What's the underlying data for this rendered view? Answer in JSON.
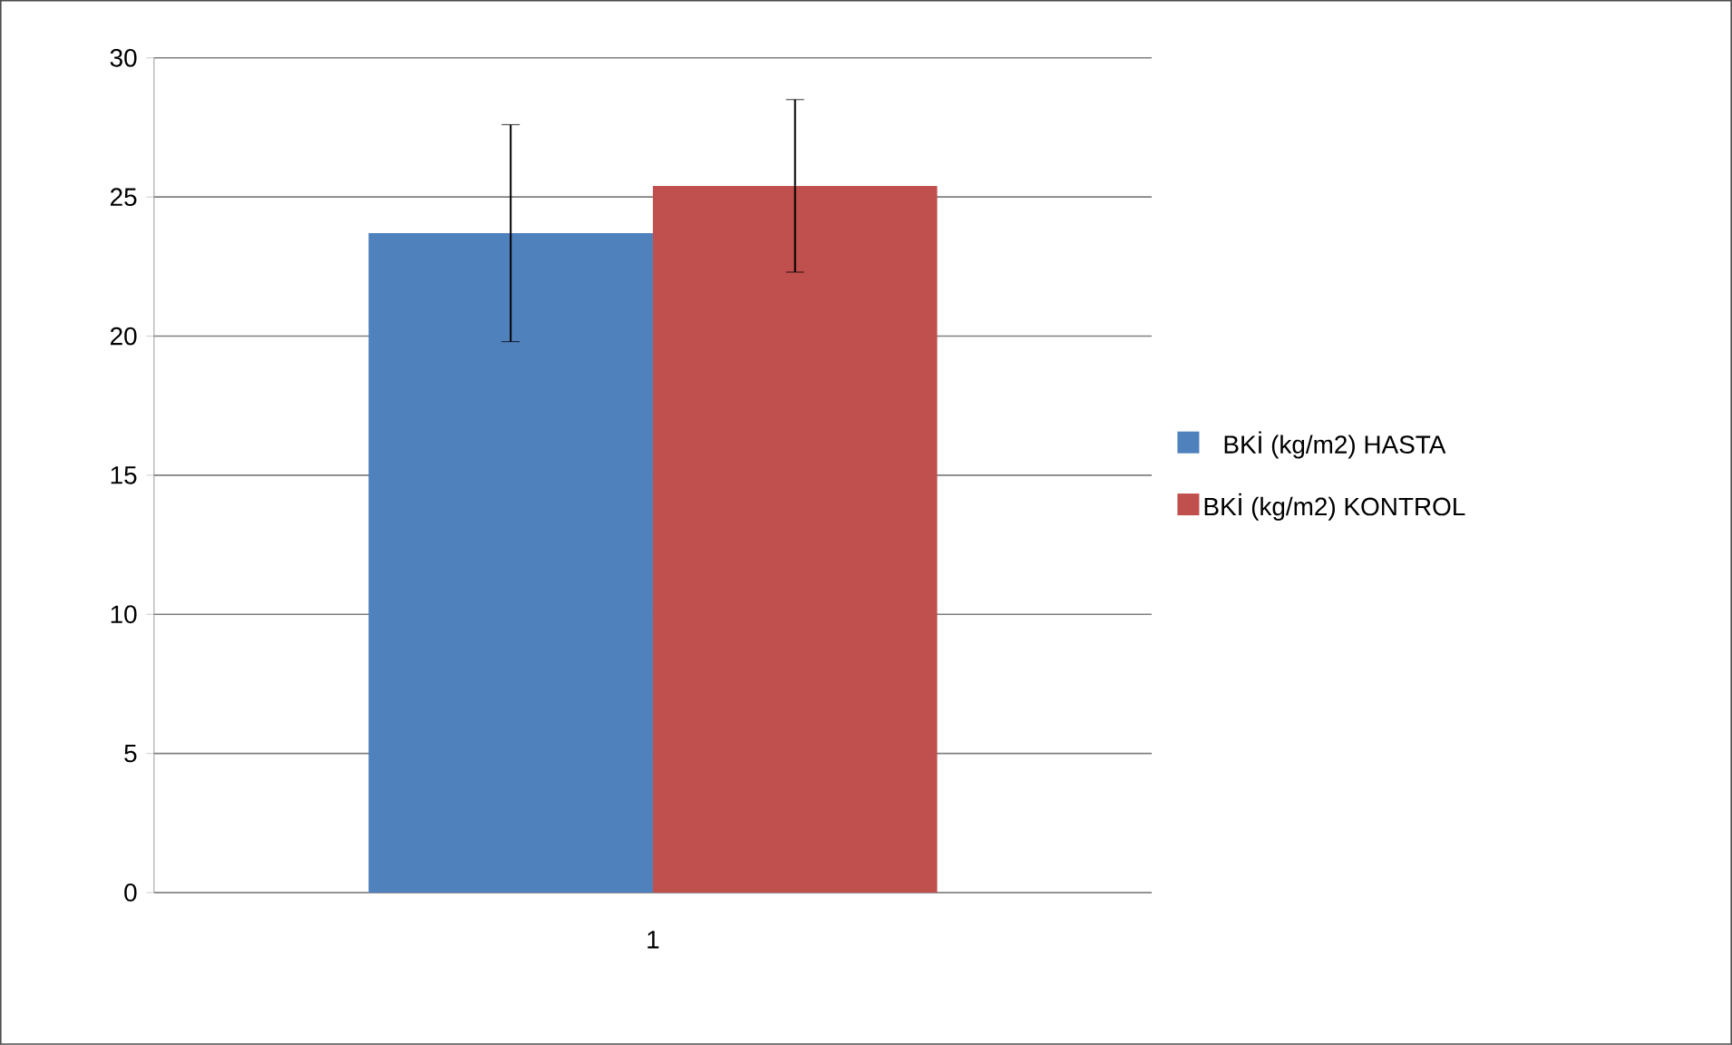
{
  "chart_data": {
    "type": "bar",
    "categories": [
      "1"
    ],
    "series": [
      {
        "name": "BKİ (kg/m2) HASTA",
        "color": "#4f81bd",
        "values": [
          23.7
        ],
        "errors": [
          3.9
        ]
      },
      {
        "name": "BKİ (kg/m2) KONTROL",
        "color": "#c0504d",
        "values": [
          25.4
        ],
        "errors": [
          3.1
        ]
      }
    ],
    "ylim": [
      0,
      30
    ],
    "yticks": [
      0,
      5,
      10,
      15,
      20,
      25,
      30
    ],
    "grid": "y",
    "legend": "right"
  }
}
